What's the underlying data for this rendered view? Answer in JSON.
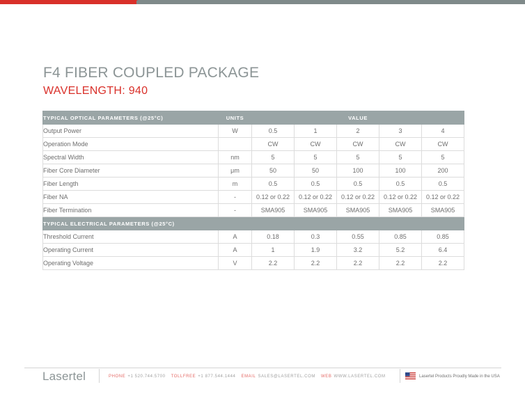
{
  "title": "F4 FIBER COUPLED PACKAGE",
  "subtitle": "WAVELENGTH: 940",
  "optical": {
    "header": "TYPICAL OPTICAL PARAMETERS (@25°C)",
    "units_header": "UNITS",
    "value_header": "VALUE",
    "rows": [
      {
        "label": "Output Power",
        "unit": "W",
        "values": [
          "0.5",
          "1",
          "2",
          "3",
          "4"
        ]
      },
      {
        "label": "Operation Mode",
        "unit": "",
        "values": [
          "CW",
          "CW",
          "CW",
          "CW",
          "CW"
        ]
      },
      {
        "label": "Spectral Width",
        "unit": "nm",
        "values": [
          "5",
          "5",
          "5",
          "5",
          "5"
        ]
      },
      {
        "label": "Fiber Core Diameter",
        "unit": "μm",
        "values": [
          "50",
          "50",
          "100",
          "100",
          "200"
        ]
      },
      {
        "label": "Fiber Length",
        "unit": "m",
        "values": [
          "0.5",
          "0.5",
          "0.5",
          "0.5",
          "0.5"
        ]
      },
      {
        "label": "Fiber NA",
        "unit": "-",
        "values": [
          "0.12 or 0.22",
          "0.12 or 0.22",
          "0.12 or 0.22",
          "0.12 or 0.22",
          "0.12 or 0.22"
        ]
      },
      {
        "label": "Fiber Termination",
        "unit": "-",
        "values": [
          "SMA905",
          "SMA905",
          "SMA905",
          "SMA905",
          "SMA905"
        ]
      }
    ]
  },
  "electrical": {
    "header": "TYPICAL ELECTRICAL PARAMETERS (@25°C)",
    "rows": [
      {
        "label": "Threshold Current",
        "unit": "A",
        "values": [
          "0.18",
          "0.3",
          "0.55",
          "0.85",
          "0.85"
        ]
      },
      {
        "label": "Operating Current",
        "unit": "A",
        "values": [
          "1",
          "1.9",
          "3.2",
          "5.2",
          "6.4"
        ]
      },
      {
        "label": "Operating Voltage",
        "unit": "V",
        "values": [
          "2.2",
          "2.2",
          "2.2",
          "2.2",
          "2.2"
        ]
      }
    ]
  },
  "footer": {
    "logo": "Lasertel",
    "phone_label": "PHONE",
    "phone": "+1 520.744.5700",
    "tollfree_label": "TOLLFREE",
    "tollfree": "+1 877.544.1444",
    "email_label": "EMAIL",
    "email": "SALES@LASERTEL.COM",
    "web_label": "WEB",
    "web": "WWW.LASERTEL.COM",
    "flag_icon": "us-flag-icon",
    "made_in": "Lasertel Products Proudly Made in the USA"
  },
  "colors": {
    "accent_red": "#d9302a",
    "header_gray": "#9aa5a6",
    "title_gray": "#8c9596"
  }
}
